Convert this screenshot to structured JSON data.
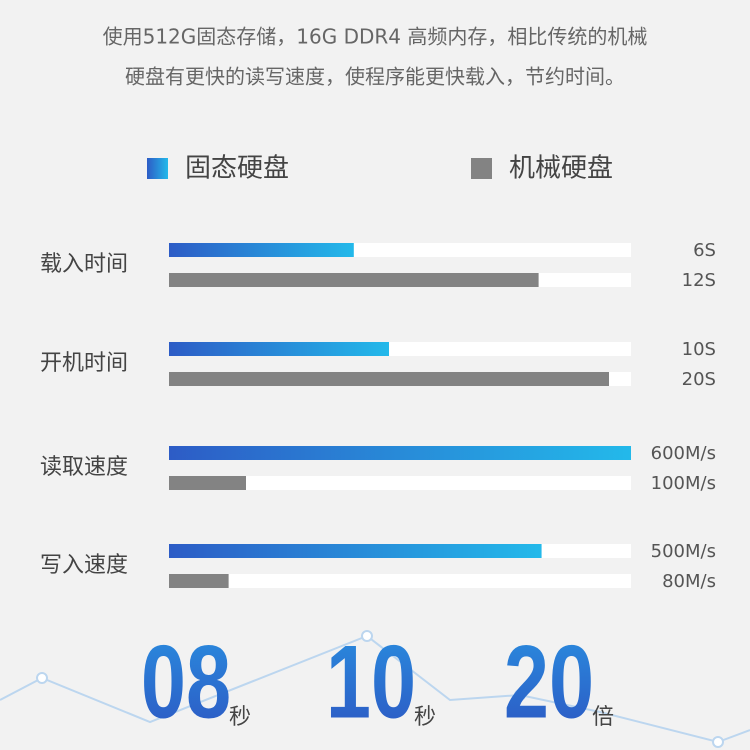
{
  "chart_data": {
    "type": "bar",
    "description": [
      "使用512G固态存储，16G DDR4 高频内存，相比传统的机械",
      "硬盘有更快的读写速度，使程序能更快载入，节约时间。"
    ],
    "series": [
      {
        "name": "固态硬盘",
        "color": [
          "#2d5cc6",
          "#23b9ea"
        ]
      },
      {
        "name": "机械硬盘",
        "color": "#838383"
      }
    ],
    "groups": [
      {
        "label": "载入时间",
        "xlim": [
          0,
          15
        ],
        "values": [
          6,
          12
        ],
        "value_labels": [
          "6S",
          "12S"
        ]
      },
      {
        "label": "开机时间",
        "xlim": [
          0,
          21
        ],
        "values": [
          10,
          20
        ],
        "value_labels": [
          "10S",
          "20S"
        ]
      },
      {
        "label": "读取速度",
        "xlim": [
          0,
          600
        ],
        "values": [
          600,
          100
        ],
        "value_labels": [
          "600M/s",
          "100M/s"
        ]
      },
      {
        "label": "写入速度",
        "xlim": [
          0,
          620
        ],
        "values": [
          500,
          80
        ],
        "value_labels": [
          "500M/s",
          "80M/s"
        ]
      }
    ],
    "big_stats": [
      {
        "value": "08",
        "unit": "秒"
      },
      {
        "value": "10",
        "unit": "秒"
      },
      {
        "value": "20",
        "unit": "倍"
      }
    ]
  }
}
